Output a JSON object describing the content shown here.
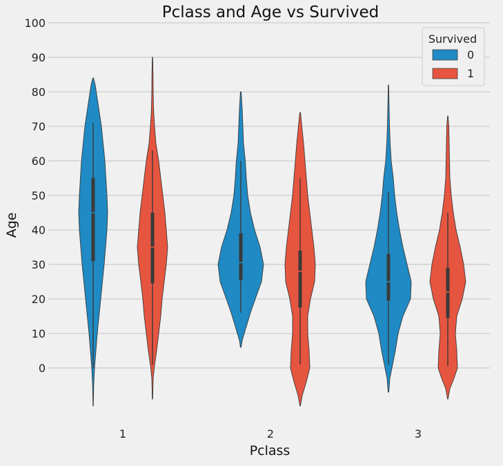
{
  "chart_data": {
    "type": "violin",
    "title": "Pclass and Age vs Survived",
    "xlabel": "Pclass",
    "ylabel": "Age",
    "categories": [
      "1",
      "2",
      "3"
    ],
    "yticks": [
      0,
      10,
      20,
      30,
      40,
      50,
      60,
      70,
      80,
      90,
      100
    ],
    "ylim": [
      -12,
      100
    ],
    "grid": "horizontal",
    "legend": {
      "title": "Survived",
      "placement": "top-right",
      "entries": [
        "0",
        "1"
      ]
    },
    "colors": {
      "0": "#1f8ac4",
      "1": "#e6553f",
      "background": "#f0f0f0",
      "grid": "#cbcbcb"
    },
    "series": [
      {
        "name": "0",
        "violins": [
          {
            "category": "1",
            "profile": [
              [
                -11,
                0.2
              ],
              [
                -5,
                0.8
              ],
              [
                0,
                2
              ],
              [
                5,
                4
              ],
              [
                10,
                6
              ],
              [
                20,
                11
              ],
              [
                30,
                16
              ],
              [
                40,
                20
              ],
              [
                45,
                21
              ],
              [
                50,
                20
              ],
              [
                60,
                17
              ],
              [
                70,
                12
              ],
              [
                78,
                6
              ],
              [
                82,
                3
              ],
              [
                84,
                0.5
              ]
            ],
            "q1": 31,
            "median": 45,
            "q3": 55,
            "whisker_low": 0,
            "whisker_high": 71
          },
          {
            "category": "2",
            "profile": [
              [
                6,
                0.5
              ],
              [
                8,
                2
              ],
              [
                12,
                8
              ],
              [
                16,
                14
              ],
              [
                20,
                21
              ],
              [
                25,
                30
              ],
              [
                30,
                33
              ],
              [
                35,
                28
              ],
              [
                40,
                20
              ],
              [
                45,
                14
              ],
              [
                50,
                10
              ],
              [
                55,
                8
              ],
              [
                60,
                6.5
              ],
              [
                65,
                4
              ],
              [
                70,
                3
              ],
              [
                75,
                2
              ],
              [
                80,
                0.5
              ]
            ],
            "q1": 25.5,
            "median": 30.5,
            "q3": 39,
            "whisker_low": 16,
            "whisker_high": 60
          },
          {
            "category": "3",
            "profile": [
              [
                -7,
                0.5
              ],
              [
                -3,
                2
              ],
              [
                0,
                5
              ],
              [
                5,
                10
              ],
              [
                10,
                14
              ],
              [
                15,
                21
              ],
              [
                20,
                32
              ],
              [
                25,
                33
              ],
              [
                30,
                27
              ],
              [
                35,
                21
              ],
              [
                40,
                16
              ],
              [
                45,
                12
              ],
              [
                50,
                9
              ],
              [
                55,
                7
              ],
              [
                60,
                4
              ],
              [
                65,
                2.5
              ],
              [
                70,
                1.5
              ],
              [
                78,
                0.7
              ],
              [
                82,
                0.3
              ]
            ],
            "q1": 19.5,
            "median": 25,
            "q3": 33,
            "whisker_low": 1,
            "whisker_high": 51
          }
        ]
      },
      {
        "name": "1",
        "violins": [
          {
            "category": "1",
            "profile": [
              [
                -9,
                0.3
              ],
              [
                -3,
                1
              ],
              [
                0,
                2.5
              ],
              [
                5,
                6
              ],
              [
                10,
                9
              ],
              [
                15,
                12
              ],
              [
                20,
                14
              ],
              [
                25,
                17
              ],
              [
                30,
                20
              ],
              [
                35,
                22
              ],
              [
                40,
                20
              ],
              [
                45,
                18
              ],
              [
                50,
                15
              ],
              [
                55,
                12
              ],
              [
                60,
                9
              ],
              [
                65,
                5
              ],
              [
                70,
                3
              ],
              [
                75,
                1.5
              ],
              [
                80,
                1
              ],
              [
                85,
                0.8
              ],
              [
                90,
                0.3
              ]
            ],
            "q1": 24.5,
            "median": 35,
            "q3": 45,
            "whisker_low": 1,
            "whisker_high": 63
          },
          {
            "category": "2",
            "profile": [
              [
                -11,
                0.3
              ],
              [
                -8,
                3
              ],
              [
                -4,
                9
              ],
              [
                0,
                14
              ],
              [
                5,
                13
              ],
              [
                10,
                11
              ],
              [
                15,
                11
              ],
              [
                20,
                15
              ],
              [
                25,
                21
              ],
              [
                30,
                22
              ],
              [
                35,
                20
              ],
              [
                40,
                17
              ],
              [
                45,
                14
              ],
              [
                50,
                11
              ],
              [
                55,
                9
              ],
              [
                60,
                7
              ],
              [
                65,
                5
              ],
              [
                70,
                2.5
              ],
              [
                74,
                0.5
              ]
            ],
            "q1": 17.5,
            "median": 28,
            "q3": 34,
            "whisker_low": 1,
            "whisker_high": 55
          },
          {
            "category": "3",
            "profile": [
              [
                -9,
                0.3
              ],
              [
                -6,
                3
              ],
              [
                -3,
                9
              ],
              [
                0,
                14
              ],
              [
                5,
                13
              ],
              [
                10,
                11
              ],
              [
                15,
                13
              ],
              [
                20,
                21
              ],
              [
                25,
                26
              ],
              [
                30,
                23
              ],
              [
                35,
                18
              ],
              [
                40,
                12
              ],
              [
                45,
                8
              ],
              [
                50,
                5
              ],
              [
                55,
                3
              ],
              [
                60,
                2.5
              ],
              [
                65,
                2
              ],
              [
                70,
                1.5
              ],
              [
                73,
                0.3
              ]
            ],
            "q1": 14.5,
            "median": 22,
            "q3": 29,
            "whisker_low": 0.5,
            "whisker_high": 45
          }
        ]
      }
    ]
  }
}
